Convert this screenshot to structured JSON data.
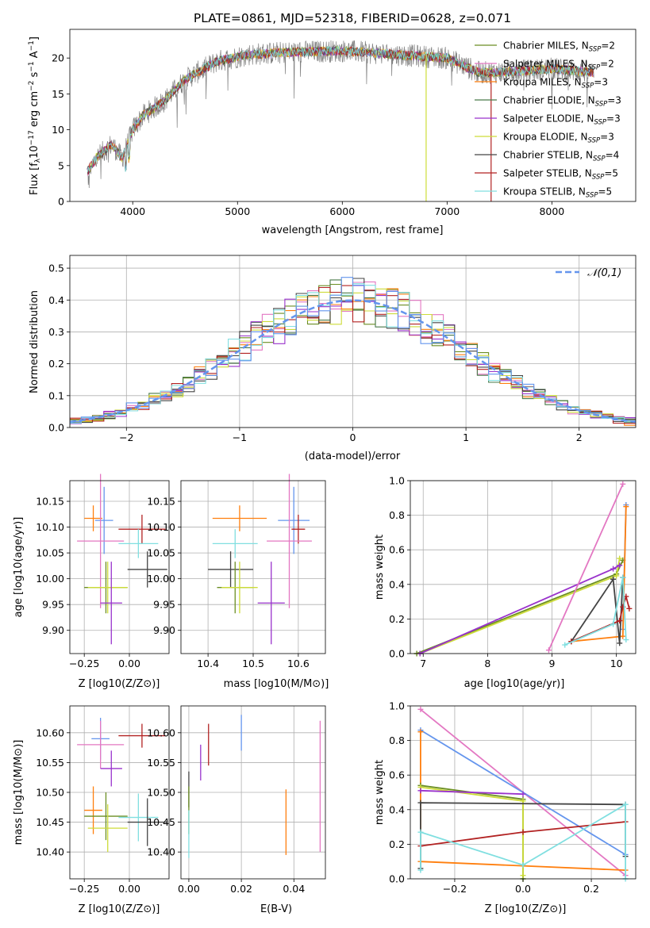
{
  "colors": {
    "Chabrier MILES": "#6b8e23",
    "Salpeter MILES": "#e377c2",
    "Kroupa MILES": "#ff7f0e",
    "Chabrier ELODIE": "#4a7a4a",
    "Salpeter ELODIE": "#9932cc",
    "Kroupa ELODIE": "#cddc39",
    "Chabrier STELIB": "#444444",
    "Salpeter STELIB": "#b22222",
    "Kroupa STELIB": "#80dfe0",
    "extra_blue": "#6495ed",
    "normal_curve": "#6495ed",
    "grid": "#b0b0b0"
  },
  "chart_data": [
    {
      "type": "line",
      "title": "PLATE=0861, MJD=52318, FIBERID=0628, z=0.071",
      "xlabel": "wavelength [Angstrom, rest frame]",
      "ylabel": "Flux [f_λ 10^-17 erg cm^-2 s^-1 A^-1]",
      "xlim": [
        3400,
        8800
      ],
      "ylim": [
        0,
        24
      ],
      "xticks": [
        "4000",
        "5000",
        "6000",
        "7000",
        "8000"
      ],
      "yticks": [
        "0",
        "5",
        "10",
        "15",
        "20"
      ],
      "legend_position": "right",
      "legend": [
        {
          "base": "Chabrier MILES, N",
          "sub": "SSP",
          "tail": "=2"
        },
        {
          "base": "Salpeter MILES, N",
          "sub": "SSP",
          "tail": "=2"
        },
        {
          "base": "Kroupa MILES, N",
          "sub": "SSP",
          "tail": "=3"
        },
        {
          "base": "Chabrier ELODIE, N",
          "sub": "SSP",
          "tail": "=3"
        },
        {
          "base": "Salpeter ELODIE, N",
          "sub": "SSP",
          "tail": "=3"
        },
        {
          "base": "Kroupa ELODIE, N",
          "sub": "SSP",
          "tail": "=3"
        },
        {
          "base": "Chabrier STELIB, N",
          "sub": "SSP",
          "tail": "=4"
        },
        {
          "base": "Salpeter STELIB, N",
          "sub": "SSP",
          "tail": "=5"
        },
        {
          "base": "Kroupa STELIB, N",
          "sub": "SSP",
          "tail": "=5"
        }
      ],
      "continuum": {
        "x": [
          3560,
          3650,
          3800,
          3900,
          4000,
          4100,
          4300,
          4500,
          4800,
          5100,
          5500,
          6000,
          6500,
          7000,
          7300,
          7500,
          8000,
          8400
        ],
        "y": [
          4,
          6,
          8,
          6,
          10,
          12,
          14,
          17,
          19.5,
          20.5,
          20.8,
          21,
          20.5,
          20,
          18,
          18,
          18.5,
          18
        ]
      }
    },
    {
      "type": "step",
      "xlabel": "(data-model)/error",
      "ylabel": "Normed distribution",
      "xlim": [
        -2.5,
        2.5
      ],
      "ylim": [
        0,
        0.54
      ],
      "xticks": [
        "−2",
        "−1",
        "0",
        "1",
        "2"
      ],
      "yticks": [
        "0.0",
        "0.1",
        "0.2",
        "0.3",
        "0.4",
        "0.5"
      ],
      "normal_label": "𝒩(0,1)",
      "bin_width": 0.1
    },
    {
      "type": "scatter",
      "subtype": "errorbar",
      "xlabel": "Z [log10(Z/Z⊙)]",
      "ylabel": "age [log10(age/yr)]",
      "xlim": [
        -0.33,
        0.22
      ],
      "ylim": [
        9.855,
        10.19
      ],
      "xticks": [
        "−0.25",
        "0.00"
      ],
      "xtick_values": [
        -0.25,
        0.0
      ],
      "yticks": [
        "9.90",
        "9.95",
        "10.00",
        "10.05",
        "10.10",
        "10.15"
      ],
      "ytick_values": [
        9.9,
        9.95,
        10.0,
        10.05,
        10.1,
        10.15
      ],
      "points": [
        {
          "c": "extra_blue",
          "x": -0.14,
          "xe": 0.05,
          "y": 10.113,
          "ye": 0.065
        },
        {
          "c": "Kroupa MILES",
          "x": -0.2,
          "xe": 0.05,
          "y": 10.117,
          "ye": 0.025
        },
        {
          "c": "Salpeter STELIB",
          "x": 0.07,
          "xe": 0.13,
          "y": 10.096,
          "ye": 0.028
        },
        {
          "c": "Salpeter MILES",
          "x": -0.16,
          "xe": 0.13,
          "y": 10.073,
          "ye": 0.13
        },
        {
          "c": "Kroupa STELIB",
          "x": 0.05,
          "xe": 0.11,
          "y": 10.068,
          "ye": 0.028
        },
        {
          "c": "Chabrier STELIB",
          "x": 0.1,
          "xe": 0.11,
          "y": 10.018,
          "ye": 0.035
        },
        {
          "c": "Chabrier MILES",
          "x": -0.13,
          "xe": 0.12,
          "y": 9.983,
          "ye": 0.05
        },
        {
          "c": "Kroupa ELODIE",
          "x": -0.12,
          "xe": 0.11,
          "y": 9.983,
          "ye": 0.05
        },
        {
          "c": "Salpeter ELODIE",
          "x": -0.1,
          "xe": 0.06,
          "y": 9.953,
          "ye": 0.08
        }
      ]
    },
    {
      "type": "scatter",
      "subtype": "errorbar",
      "xlabel": "mass [log10(M/M⊙)]",
      "ylabel": "",
      "xlim": [
        10.34,
        10.66
      ],
      "ylim": [
        9.855,
        10.19
      ],
      "xticks": [
        "10.4",
        "10.5",
        "10.6"
      ],
      "xtick_values": [
        10.4,
        10.5,
        10.6
      ],
      "yticks": [
        "9.90",
        "9.95",
        "10.00",
        "10.05",
        "10.10",
        "10.15"
      ],
      "ytick_values": [
        9.9,
        9.95,
        10.0,
        10.05,
        10.1,
        10.15
      ],
      "points": [
        {
          "c": "extra_blue",
          "x": 10.59,
          "xe": 0.035,
          "y": 10.113,
          "ye": 0.065
        },
        {
          "c": "Kroupa MILES",
          "x": 10.47,
          "xe": 0.06,
          "y": 10.117,
          "ye": 0.025
        },
        {
          "c": "Salpeter STELIB",
          "x": 10.6,
          "xe": 0.015,
          "y": 10.096,
          "ye": 0.028
        },
        {
          "c": "Salpeter MILES",
          "x": 10.58,
          "xe": 0.05,
          "y": 10.073,
          "ye": 0.13
        },
        {
          "c": "Kroupa STELIB",
          "x": 10.46,
          "xe": 0.05,
          "y": 10.068,
          "ye": 0.028
        },
        {
          "c": "Chabrier STELIB",
          "x": 10.45,
          "xe": 0.05,
          "y": 10.018,
          "ye": 0.035
        },
        {
          "c": "Chabrier MILES",
          "x": 10.46,
          "xe": 0.04,
          "y": 9.983,
          "ye": 0.05
        },
        {
          "c": "Kroupa ELODIE",
          "x": 10.47,
          "xe": 0.04,
          "y": 9.983,
          "ye": 0.05
        },
        {
          "c": "Salpeter ELODIE",
          "x": 10.54,
          "xe": 0.03,
          "y": 9.953,
          "ye": 0.08
        }
      ]
    },
    {
      "type": "line",
      "xlabel": "age [log10(age/yr)]",
      "ylabel": "mass weight",
      "xlim": [
        6.8,
        10.3
      ],
      "ylim": [
        0,
        1
      ],
      "xticks": [
        "7",
        "8",
        "9",
        "10"
      ],
      "xtick_values": [
        7,
        8,
        9,
        10
      ],
      "yticks": [
        "0.0",
        "0.2",
        "0.4",
        "0.6",
        "0.8",
        "1.0"
      ],
      "ytick_values": [
        0,
        0.2,
        0.4,
        0.6,
        0.8,
        1.0
      ],
      "series": [
        {
          "c": "Chabrier MILES",
          "x": [
            6.9,
            10.0,
            10.1
          ],
          "y": [
            0.0,
            0.46,
            0.54
          ]
        },
        {
          "c": "Kroupa ELODIE",
          "x": [
            6.95,
            10.0,
            10.05
          ],
          "y": [
            0.0,
            0.45,
            0.55
          ]
        },
        {
          "c": "Salpeter ELODIE",
          "x": [
            6.95,
            9.95,
            10.05
          ],
          "y": [
            0.0,
            0.49,
            0.51
          ]
        },
        {
          "c": "Salpeter MILES",
          "x": [
            8.95,
            10.1
          ],
          "y": [
            0.02,
            0.98
          ]
        },
        {
          "c": "extra_blue",
          "x": [
            10.1,
            10.15
          ],
          "y": [
            0.14,
            0.86
          ]
        },
        {
          "c": "Kroupa MILES",
          "x": [
            9.3,
            10.1,
            10.15
          ],
          "y": [
            0.07,
            0.1,
            0.85
          ]
        },
        {
          "c": "Chabrier STELIB",
          "x": [
            9.3,
            9.95,
            10.05,
            10.1
          ],
          "y": [
            0.07,
            0.43,
            0.06,
            0.44
          ]
        },
        {
          "c": "Salpeter STELIB",
          "x": [
            9.3,
            10.05,
            10.1,
            10.15,
            10.2
          ],
          "y": [
            0.07,
            0.19,
            0.27,
            0.33,
            0.26
          ]
        },
        {
          "c": "Kroupa STELIB",
          "x": [
            9.2,
            9.95,
            10.1,
            10.15
          ],
          "y": [
            0.05,
            0.17,
            0.44,
            0.08
          ]
        }
      ]
    },
    {
      "type": "scatter",
      "subtype": "errorbar",
      "xlabel": "Z [log10(Z/Z⊙)]",
      "ylabel": "mass [log10(M/M⊙)]",
      "xlim": [
        -0.33,
        0.22
      ],
      "ylim": [
        10.355,
        10.645
      ],
      "xticks": [
        "−0.25",
        "0.00"
      ],
      "xtick_values": [
        -0.25,
        0.0
      ],
      "yticks": [
        "10.40",
        "10.45",
        "10.50",
        "10.55",
        "10.60"
      ],
      "ytick_values": [
        10.4,
        10.45,
        10.5,
        10.55,
        10.6
      ],
      "points": [
        {
          "c": "extra_blue",
          "x": -0.16,
          "xe": 0.05,
          "y": 10.59,
          "ye": 0.035
        },
        {
          "c": "Salpeter STELIB",
          "x": 0.07,
          "xe": 0.13,
          "y": 10.595,
          "ye": 0.02
        },
        {
          "c": "Salpeter MILES",
          "x": -0.16,
          "xe": 0.13,
          "y": 10.58,
          "ye": 0.04
        },
        {
          "c": "Salpeter ELODIE",
          "x": -0.1,
          "xe": 0.06,
          "y": 10.54,
          "ye": 0.03
        },
        {
          "c": "Kroupa MILES",
          "x": -0.2,
          "xe": 0.05,
          "y": 10.47,
          "ye": 0.04
        },
        {
          "c": "Chabrier MILES",
          "x": -0.13,
          "xe": 0.12,
          "y": 10.46,
          "ye": 0.04
        },
        {
          "c": "Kroupa STELIB",
          "x": 0.05,
          "xe": 0.11,
          "y": 10.458,
          "ye": 0.04
        },
        {
          "c": "Chabrier STELIB",
          "x": 0.1,
          "xe": 0.11,
          "y": 10.45,
          "ye": 0.04
        },
        {
          "c": "Kroupa ELODIE",
          "x": -0.12,
          "xe": 0.11,
          "y": 10.44,
          "ye": 0.04
        }
      ]
    },
    {
      "type": "scatter",
      "subtype": "errorbar",
      "xlabel": "E(B-V)",
      "ylabel": "",
      "xlim": [
        -0.003,
        0.052
      ],
      "ylim": [
        10.355,
        10.645
      ],
      "xticks": [
        "0.00",
        "0.02",
        "0.04"
      ],
      "xtick_values": [
        0.0,
        0.02,
        0.04
      ],
      "yticks": [
        "10.40",
        "10.45",
        "10.50",
        "10.55",
        "10.60"
      ],
      "ytick_values": [
        10.4,
        10.45,
        10.5,
        10.55,
        10.6
      ],
      "points": [
        {
          "c": "extra_blue",
          "x": 0.02,
          "xe": 0,
          "y": 10.6,
          "ye": 0.03
        },
        {
          "c": "Salpeter STELIB",
          "x": 0.0075,
          "xe": 0,
          "y": 10.58,
          "ye": 0.035
        },
        {
          "c": "Salpeter ELODIE",
          "x": 0.0045,
          "xe": 0,
          "y": 10.55,
          "ye": 0.03
        },
        {
          "c": "Chabrier STELIB",
          "x": 0.0,
          "xe": 0,
          "y": 10.505,
          "ye": 0.03
        },
        {
          "c": "Chabrier MILES",
          "x": 0.0,
          "xe": 0,
          "y": 10.47,
          "ye": 0.04
        },
        {
          "c": "Kroupa STELIB",
          "x": 0.0,
          "xe": 0,
          "y": 10.43,
          "ye": 0.04
        },
        {
          "c": "Kroupa MILES",
          "x": 0.037,
          "xe": 0,
          "y": 10.45,
          "ye": 0.055
        },
        {
          "c": "Salpeter MILES",
          "x": 0.05,
          "xe": 0,
          "y": 10.51,
          "ye": 0.11
        }
      ]
    },
    {
      "type": "line",
      "xlabel": "Z [log10(Z/Z⊙)]",
      "ylabel": "mass weight",
      "xlim": [
        -0.33,
        0.33
      ],
      "ylim": [
        0,
        1
      ],
      "xticks": [
        "−0.2",
        "0.0",
        "0.2"
      ],
      "xtick_values": [
        -0.2,
        0.0,
        0.2
      ],
      "yticks": [
        "0.0",
        "0.2",
        "0.4",
        "0.6",
        "0.8",
        "1.0"
      ],
      "ytick_values": [
        0,
        0.2,
        0.4,
        0.6,
        0.8,
        1.0
      ],
      "series": [
        {
          "c": "Salpeter MILES",
          "x": [
            -0.3,
            0.3
          ],
          "y": [
            0.98,
            0.02
          ]
        },
        {
          "c": "extra_blue",
          "x": [
            -0.3,
            0.3
          ],
          "y": [
            0.86,
            0.14
          ]
        },
        {
          "c": "Kroupa MILES",
          "x": [
            -0.3,
            -0.3,
            0.3
          ],
          "y": [
            0.85,
            0.1,
            0.05
          ]
        },
        {
          "c": "Chabrier MILES",
          "x": [
            -0.3,
            0.0,
            0.0
          ],
          "y": [
            0.54,
            0.46,
            0.0
          ]
        },
        {
          "c": "Kroupa ELODIE",
          "x": [
            -0.3,
            0.0,
            0.0
          ],
          "y": [
            0.53,
            0.45,
            0.02
          ]
        },
        {
          "c": "Salpeter ELODIE",
          "x": [
            -0.3,
            0.0
          ],
          "y": [
            0.51,
            0.49
          ]
        },
        {
          "c": "Chabrier STELIB",
          "x": [
            -0.3,
            -0.3,
            0.3,
            0.3
          ],
          "y": [
            0.06,
            0.44,
            0.43,
            0.13
          ]
        },
        {
          "c": "Salpeter STELIB",
          "x": [
            -0.3,
            0.0,
            0.3
          ],
          "y": [
            0.19,
            0.27,
            0.33
          ]
        },
        {
          "c": "Kroupa STELIB",
          "x": [
            -0.3,
            -0.3,
            0.0,
            0.3,
            0.3
          ],
          "y": [
            0.05,
            0.27,
            0.08,
            0.43,
            0.0
          ]
        }
      ]
    }
  ]
}
